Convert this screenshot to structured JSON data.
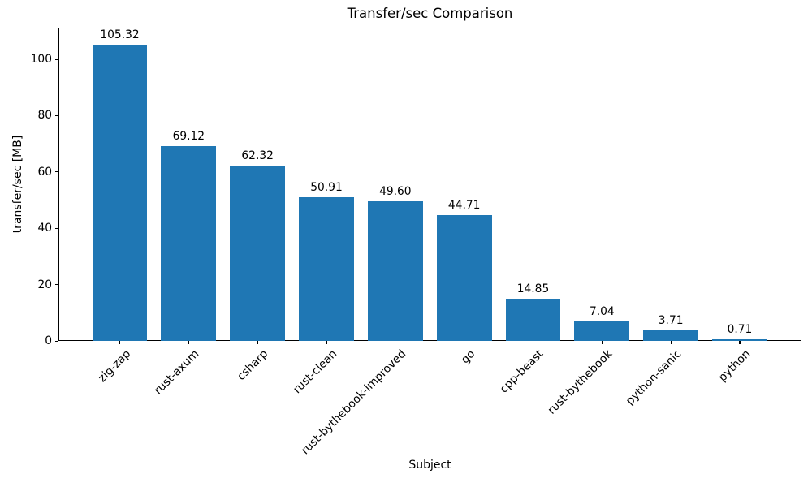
{
  "chart_data": {
    "type": "bar",
    "title": "Transfer/sec Comparison",
    "xlabel": "Subject",
    "ylabel": "transfer/sec [MB]",
    "categories": [
      "zig-zap",
      "rust-axum",
      "csharp",
      "rust-clean",
      "rust-bythebook-improved",
      "go",
      "cpp-beast",
      "rust-bythebook",
      "python-sanic",
      "python"
    ],
    "values": [
      105.32,
      69.12,
      62.32,
      50.91,
      49.6,
      44.71,
      14.85,
      7.04,
      3.71,
      0.71
    ],
    "bar_value_labels": [
      "105.32",
      "69.12",
      "62.32",
      "50.91",
      "49.60",
      "44.71",
      "14.85",
      "7.04",
      "3.71",
      "0.71"
    ],
    "yticks": [
      0,
      20,
      40,
      60,
      80,
      100
    ],
    "ylim": [
      0,
      111.3
    ],
    "xtick_rotation": 45,
    "bar_color": "#1f77b4",
    "axis_color": "#000000",
    "text_color": "#000000",
    "grid": false,
    "legend_position": "none"
  }
}
